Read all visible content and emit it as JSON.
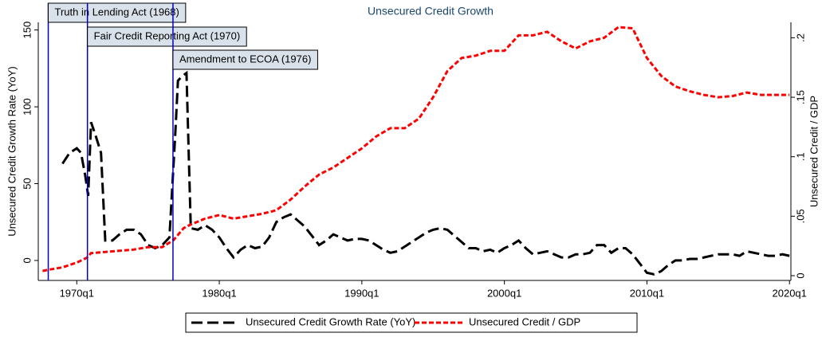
{
  "chart_data": {
    "type": "line",
    "title": "Unsecured Credit Growth",
    "ylabel": "Unsecured Credit Growth Rate (YoY)",
    "y2label": "Unsecured Credit / GDP",
    "xlim": [
      1967.3,
      2020.1
    ],
    "xticks": [
      {
        "value": 1970,
        "label": "1970q1"
      },
      {
        "value": 1980,
        "label": "1980q1"
      },
      {
        "value": 1990,
        "label": "1990q1"
      },
      {
        "value": 2000,
        "label": "2000q1"
      },
      {
        "value": 2010,
        "label": "2010q1"
      },
      {
        "value": 2020,
        "label": "2020q1"
      }
    ],
    "ylim": [
      -13,
      155
    ],
    "yticks": [
      0,
      50,
      100,
      150
    ],
    "y2lim": [
      -0.004,
      0.213
    ],
    "y2ticks": [
      0,
      {
        "value": 0.05,
        "label": ".05"
      },
      {
        "value": 0.1,
        "label": ".1"
      },
      {
        "value": 0.15,
        "label": ".15"
      },
      {
        "value": 0.2,
        "label": ".2"
      }
    ],
    "annotations": [
      {
        "text": "Truth in Lending Act (1968)",
        "x": 1968.0,
        "color": "#0000cc"
      },
      {
        "text": "Fair Credit Reporting Act (1970)",
        "x": 1970.75,
        "color": "#0000cc"
      },
      {
        "text": "Amendment to ECOA (1976)",
        "x": 1976.75,
        "color": "#0000cc"
      }
    ],
    "series": [
      {
        "name": "Unsecured Credit Growth Rate (YoY)",
        "color": "#000000",
        "axis": "y",
        "x": [
          1969.0,
          1969.5,
          1970.0,
          1970.3,
          1970.6,
          1970.8,
          1971.0,
          1971.3,
          1971.7,
          1972.0,
          1972.5,
          1973.0,
          1973.5,
          1974.0,
          1974.5,
          1975.0,
          1975.5,
          1976.0,
          1976.5,
          1976.9,
          1977.1,
          1977.4,
          1977.7,
          1978.0,
          1978.5,
          1979.0,
          1979.5,
          1980.0,
          1980.5,
          1981.0,
          1981.5,
          1982.0,
          1982.5,
          1983.0,
          1983.5,
          1984.0,
          1984.5,
          1985.0,
          1985.5,
          1986.0,
          1986.5,
          1987.0,
          1987.5,
          1988.0,
          1988.5,
          1989.0,
          1989.5,
          1990.0,
          1990.5,
          1991.0,
          1991.5,
          1992.0,
          1992.5,
          1993.0,
          1993.5,
          1994.0,
          1994.5,
          1995.0,
          1995.5,
          1996.0,
          1996.5,
          1997.0,
          1997.5,
          1998.0,
          1998.5,
          1999.0,
          1999.5,
          2000.0,
          2000.5,
          2001.0,
          2001.5,
          2002.0,
          2002.5,
          2003.0,
          2003.5,
          2004.0,
          2004.5,
          2005.0,
          2005.5,
          2006.0,
          2006.5,
          2007.0,
          2007.5,
          2008.0,
          2008.5,
          2009.0,
          2009.5,
          2010.0,
          2010.5,
          2011.0,
          2011.5,
          2012.0,
          2012.5,
          2013.0,
          2013.5,
          2014.0,
          2014.5,
          2015.0,
          2015.5,
          2016.0,
          2016.5,
          2017.0,
          2017.5,
          2018.0,
          2018.5,
          2019.0,
          2019.5,
          2020.0
        ],
        "values": [
          63,
          70,
          73,
          70,
          55,
          42,
          90,
          82,
          70,
          13,
          13,
          17,
          20,
          20,
          17,
          10,
          8,
          10,
          15,
          80,
          117,
          120,
          122,
          21,
          20,
          23,
          20,
          15,
          8,
          2,
          7,
          10,
          8,
          9,
          15,
          25,
          28,
          30,
          26,
          22,
          16,
          10,
          13,
          17,
          15,
          13,
          14,
          14,
          13,
          10,
          7,
          5,
          6,
          9,
          12,
          15,
          18,
          20,
          21,
          20,
          16,
          12,
          8,
          8,
          6,
          7,
          5,
          8,
          10,
          13,
          8,
          4,
          5,
          6,
          4,
          2,
          2,
          4,
          4,
          5,
          10,
          10,
          5,
          8,
          8,
          4,
          -2,
          -8,
          -9,
          -7,
          -3,
          0,
          0,
          1,
          1,
          2,
          3,
          4,
          4,
          4,
          3,
          6,
          5,
          4,
          3,
          3,
          4,
          3
        ]
      },
      {
        "name": "Unsecured Credit / GDP",
        "color": "#ff0000",
        "axis": "y2",
        "x": [
          1967.6,
          1968,
          1969,
          1970,
          1970.7,
          1971,
          1972,
          1973,
          1974,
          1975,
          1976,
          1976.8,
          1977.5,
          1978,
          1979,
          1980,
          1981,
          1982,
          1983,
          1984,
          1985,
          1986,
          1987,
          1988,
          1989,
          1990,
          1991,
          1992,
          1993,
          1994,
          1995,
          1996,
          1997,
          1998,
          1999,
          2000,
          2001,
          2002,
          2003,
          2004,
          2005,
          2006,
          2007,
          2008,
          2009,
          2010,
          2011,
          2012,
          2013,
          2014,
          2015,
          2016,
          2017,
          2018,
          2019,
          2020
        ],
        "values": [
          0.004,
          0.005,
          0.007,
          0.011,
          0.015,
          0.019,
          0.02,
          0.021,
          0.022,
          0.024,
          0.024,
          0.03,
          0.04,
          0.043,
          0.048,
          0.051,
          0.048,
          0.05,
          0.052,
          0.055,
          0.064,
          0.075,
          0.085,
          0.091,
          0.099,
          0.107,
          0.117,
          0.124,
          0.124,
          0.132,
          0.15,
          0.172,
          0.183,
          0.185,
          0.189,
          0.189,
          0.202,
          0.202,
          0.205,
          0.197,
          0.191,
          0.197,
          0.2,
          0.209,
          0.208,
          0.183,
          0.168,
          0.159,
          0.155,
          0.152,
          0.15,
          0.151,
          0.154,
          0.152,
          0.152,
          0.152
        ]
      }
    ]
  }
}
